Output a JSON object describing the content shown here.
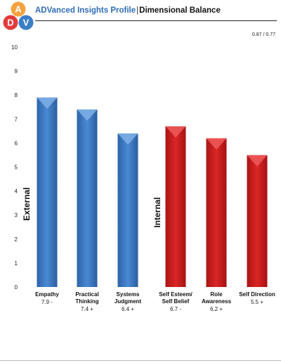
{
  "header": {
    "brand": "ADVanced Insights Profile",
    "separator": "|",
    "subtitle": "Dimensional Balance",
    "logo": {
      "letters": [
        "A",
        "D",
        "V"
      ],
      "colors": [
        "#f4a340",
        "#e23b3b",
        "#3a7ec8"
      ]
    }
  },
  "score_label": "0.87 / 0.77",
  "chart_data": {
    "type": "bar",
    "ylim": [
      0,
      10
    ],
    "y_ticks": [
      "0",
      "1",
      "2",
      "3",
      "4",
      "5",
      "6",
      "7",
      "8",
      "9",
      "10"
    ],
    "grid": false,
    "groups": [
      {
        "label": "External",
        "color": "#3a7ec8",
        "start": 0,
        "end": 2
      },
      {
        "label": "Internal",
        "color": "#d42020",
        "start": 3,
        "end": 5
      }
    ],
    "bars": [
      {
        "label": "Empathy",
        "value": 7.9,
        "value_label": "7.9 -",
        "group": "External"
      },
      {
        "label": "Practical\nThinking",
        "value": 7.4,
        "value_label": "7.4 +",
        "group": "External"
      },
      {
        "label": "Systems\nJudgment",
        "value": 6.4,
        "value_label": "6.4 +",
        "group": "External"
      },
      {
        "label": "Self Esteem/\nSelf Belief",
        "value": 6.7,
        "value_label": "6.7 -",
        "group": "Internal"
      },
      {
        "label": "Role\nAwareness",
        "value": 6.2,
        "value_label": "6.2 +",
        "group": "Internal"
      },
      {
        "label": "Self Direction",
        "value": 5.5,
        "value_label": "5.5 +",
        "group": "Internal"
      }
    ]
  }
}
